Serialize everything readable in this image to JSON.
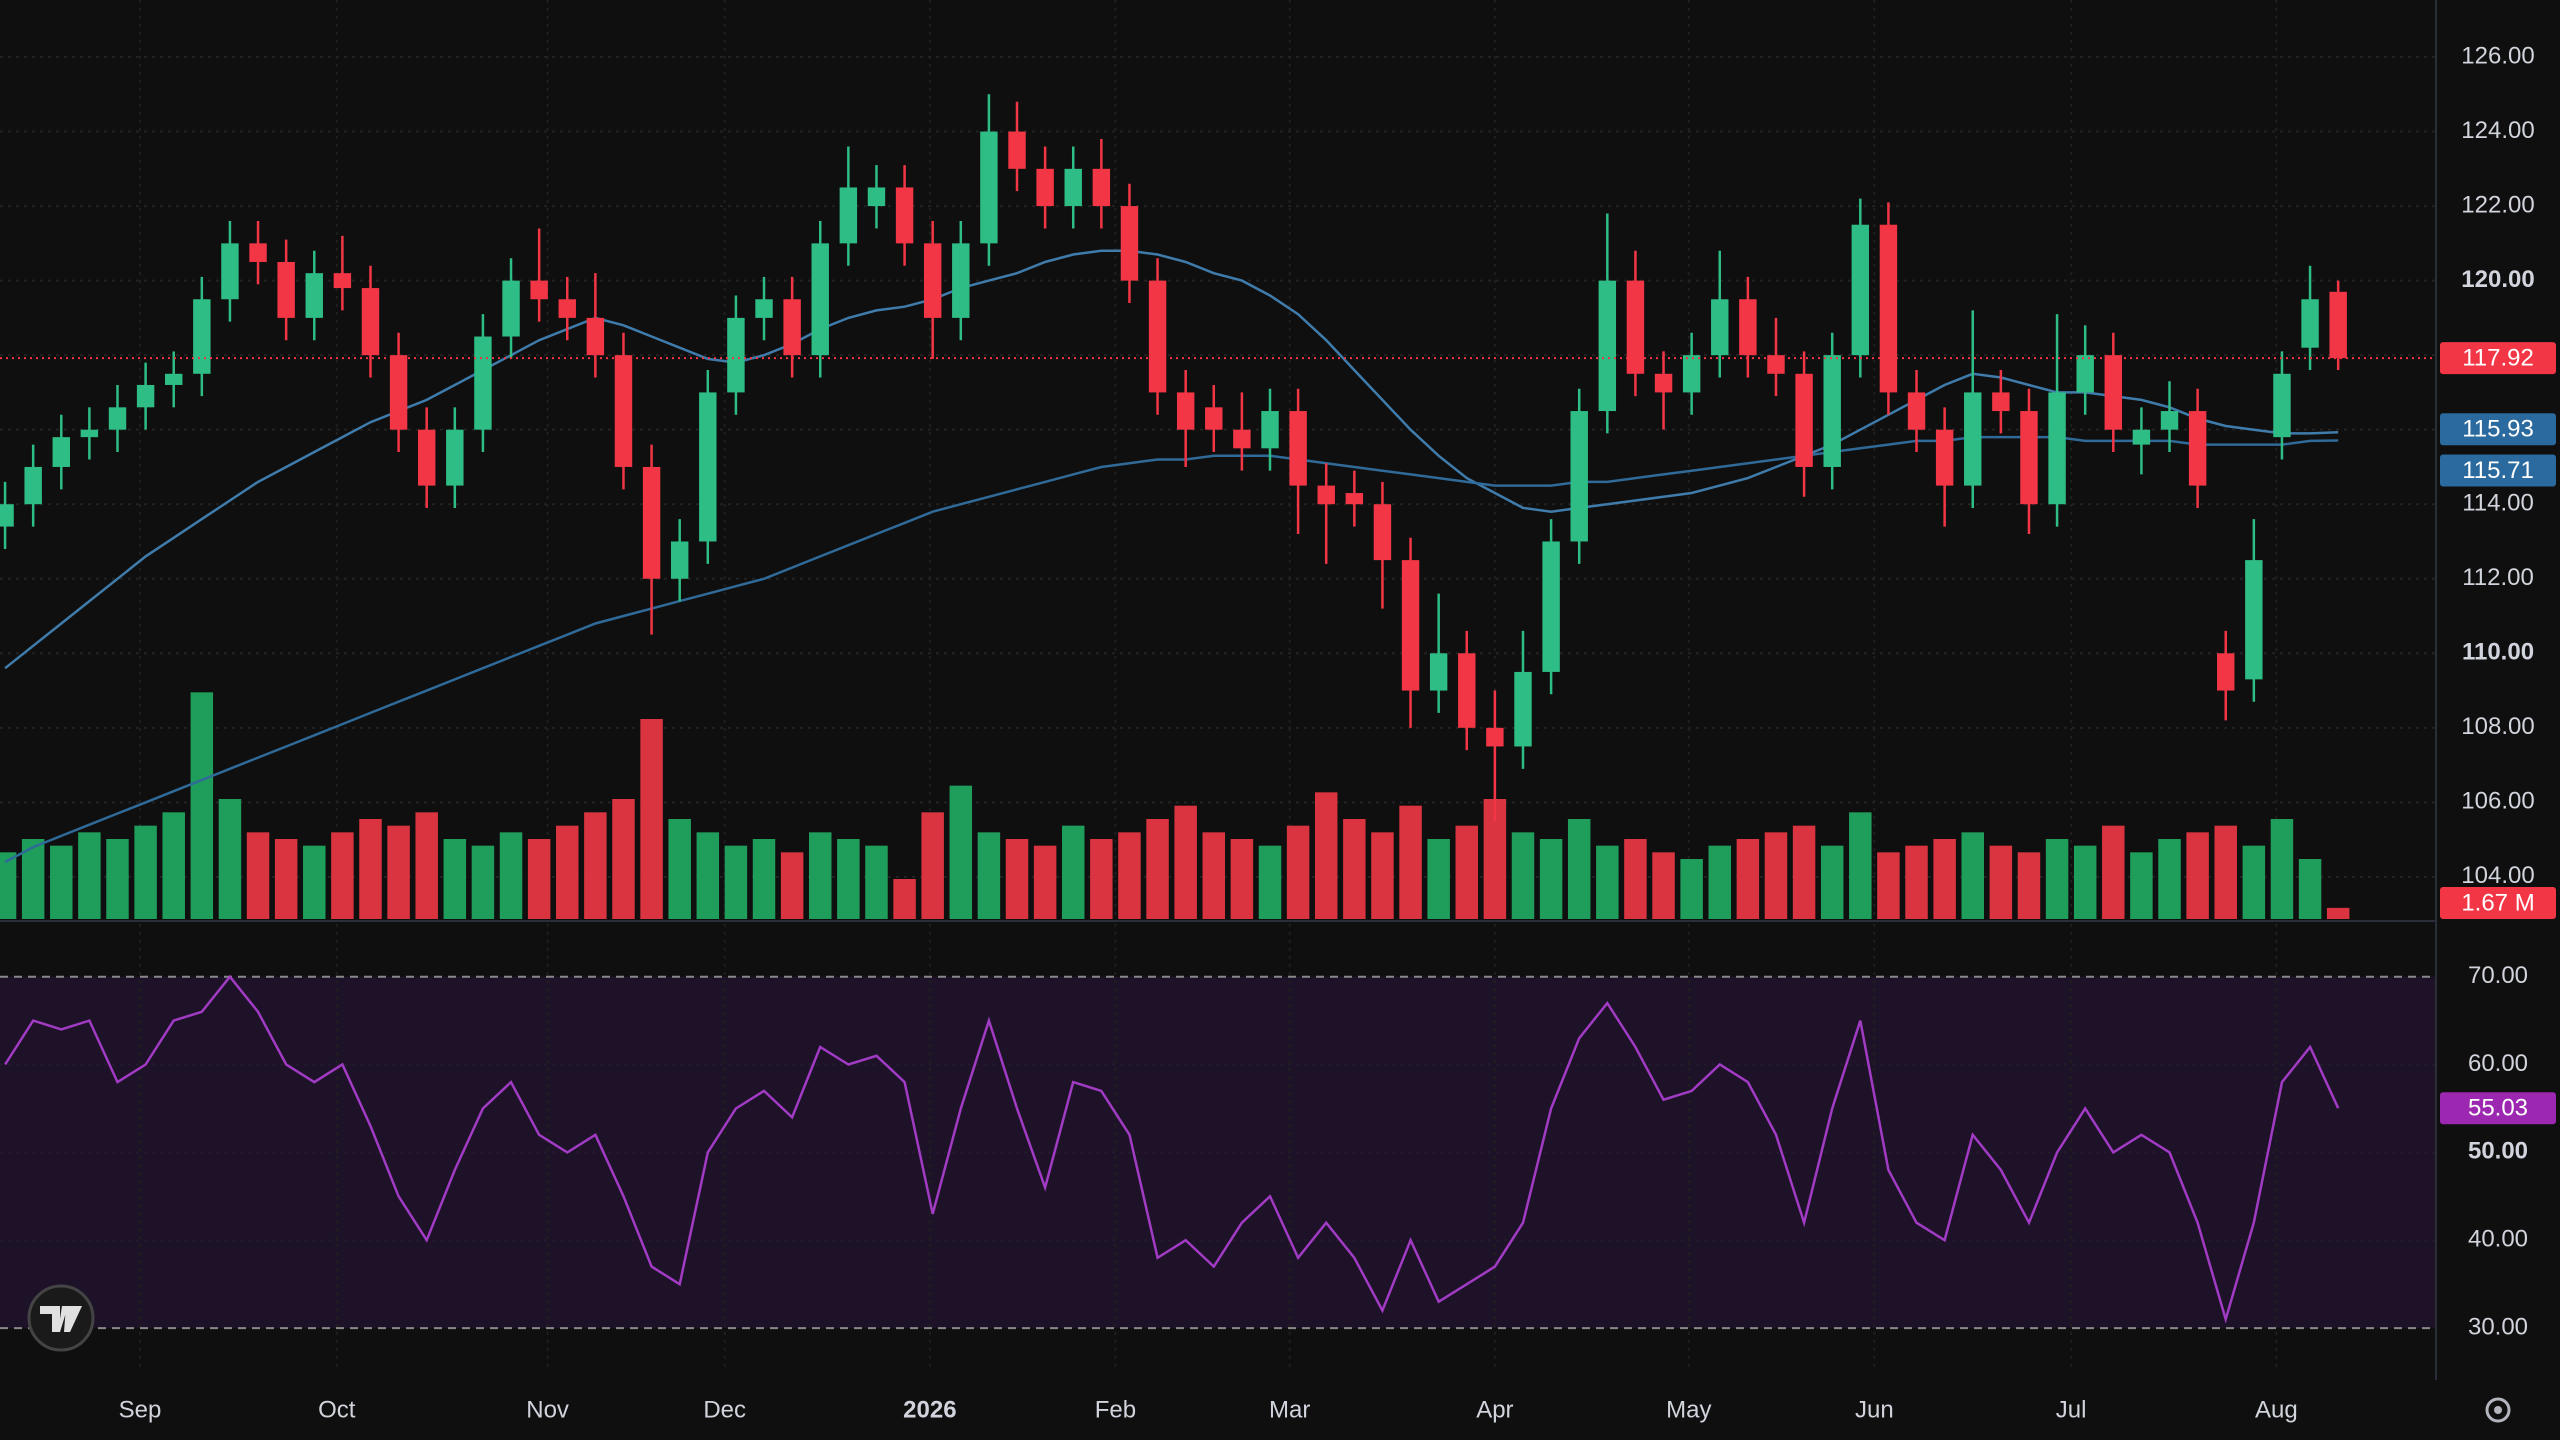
{
  "chart_data": {
    "type": "candlestick",
    "background": "#0f0f0f",
    "up_color": "#2ebd85",
    "down_color": "#f23645",
    "volume_up_color": "#1f9d5b",
    "volume_down_color": "#d9343f",
    "grid": true,
    "xlim": [
      -0.18,
      86.48
    ],
    "xticks": [
      {
        "value": 4.8,
        "label": "Sep"
      },
      {
        "value": 11.8,
        "label": "Oct"
      },
      {
        "value": 19.3,
        "label": "Nov"
      },
      {
        "value": 25.6,
        "label": "Dec"
      },
      {
        "value": 32.9,
        "label": "2026"
      },
      {
        "value": 39.5,
        "label": "Feb"
      },
      {
        "value": 45.7,
        "label": "Mar"
      },
      {
        "value": 53.0,
        "label": "Apr"
      },
      {
        "value": 59.9,
        "label": "May"
      },
      {
        "value": 66.5,
        "label": "Jun"
      },
      {
        "value": 73.5,
        "label": "Jul"
      },
      {
        "value": 80.8,
        "label": "Aug"
      }
    ],
    "ylim": [
      102.87,
      127.53
    ],
    "yticks": [
      {
        "value": 104,
        "label": "104.00"
      },
      {
        "value": 106,
        "label": "106.00"
      },
      {
        "value": 108,
        "label": "108.00"
      },
      {
        "value": 110,
        "label": "110.00"
      },
      {
        "value": 112,
        "label": "112.00"
      },
      {
        "value": 114,
        "label": "114.00"
      },
      {
        "value": 116,
        "label": "116.00"
      },
      {
        "value": 118,
        "label": "118.00"
      },
      {
        "value": 120,
        "label": "120.00"
      },
      {
        "value": 122,
        "label": "122.00"
      },
      {
        "value": 124,
        "label": "124.00"
      },
      {
        "value": 126,
        "label": "126.00"
      }
    ],
    "open": [
      113.4,
      114.0,
      115.0,
      115.8,
      116.0,
      116.6,
      117.2,
      117.5,
      119.5,
      121.0,
      120.5,
      119.0,
      120.2,
      119.8,
      118.0,
      116.0,
      114.5,
      116.0,
      118.5,
      120.0,
      119.5,
      119.0,
      118.0,
      115.0,
      112.0,
      113.0,
      117.0,
      119.0,
      119.5,
      118.0,
      121.0,
      122.0,
      122.5,
      121.0,
      119.0,
      121.0,
      124.0,
      123.0,
      122.0,
      123.0,
      122.0,
      120.0,
      117.0,
      116.6,
      116.0,
      115.5,
      116.5,
      114.5,
      114.3,
      114.0,
      112.5,
      109.0,
      110.0,
      108.0,
      107.5,
      109.5,
      113.0,
      116.5,
      120.0,
      117.5,
      117.0,
      118.0,
      119.5,
      118.0,
      117.5,
      115.0,
      118.0,
      121.5,
      117.0,
      116.0,
      114.5,
      117.0,
      116.5,
      114.0,
      117.0,
      118.0,
      115.6,
      116.0,
      116.5,
      110.0,
      109.3,
      115.8,
      118.2,
      119.7
    ],
    "high": [
      114.6,
      115.6,
      116.4,
      116.6,
      117.2,
      117.8,
      118.1,
      120.1,
      121.6,
      121.6,
      121.1,
      120.8,
      121.2,
      120.4,
      118.6,
      116.6,
      116.6,
      119.1,
      120.6,
      121.4,
      120.1,
      120.2,
      118.6,
      115.6,
      113.6,
      117.6,
      119.6,
      120.1,
      120.1,
      121.6,
      123.6,
      123.1,
      123.1,
      121.6,
      121.6,
      125.0,
      124.8,
      123.6,
      123.6,
      123.8,
      122.6,
      120.6,
      117.6,
      117.2,
      117.0,
      117.1,
      117.1,
      115.1,
      114.9,
      114.6,
      113.1,
      111.6,
      110.6,
      109.0,
      110.6,
      113.6,
      117.1,
      121.8,
      120.8,
      118.1,
      118.6,
      120.8,
      120.1,
      119.0,
      118.1,
      118.6,
      122.2,
      122.1,
      117.6,
      116.6,
      119.2,
      117.6,
      117.1,
      119.1,
      118.8,
      118.6,
      116.6,
      117.3,
      117.1,
      110.6,
      113.6,
      118.1,
      120.4,
      120.0
    ],
    "low": [
      112.8,
      113.4,
      114.4,
      115.2,
      115.4,
      116.0,
      116.6,
      116.9,
      118.9,
      119.9,
      118.4,
      118.4,
      119.2,
      117.4,
      115.4,
      113.9,
      113.9,
      115.4,
      117.9,
      118.9,
      118.4,
      117.4,
      114.4,
      110.5,
      111.4,
      112.4,
      116.4,
      118.4,
      117.4,
      117.4,
      120.4,
      121.4,
      120.4,
      117.9,
      118.4,
      120.4,
      122.4,
      121.4,
      121.4,
      121.4,
      119.4,
      116.4,
      115.0,
      115.4,
      114.9,
      114.9,
      113.2,
      112.4,
      113.4,
      111.2,
      108.0,
      108.4,
      107.4,
      105.5,
      106.9,
      108.9,
      112.4,
      115.9,
      116.9,
      116.0,
      116.4,
      117.4,
      117.4,
      116.9,
      114.2,
      114.4,
      117.4,
      116.4,
      115.4,
      113.4,
      113.9,
      115.9,
      113.2,
      113.4,
      116.4,
      115.4,
      114.8,
      115.4,
      113.9,
      108.2,
      108.7,
      115.2,
      117.6,
      117.6
    ],
    "close": [
      114.0,
      115.0,
      115.8,
      116.0,
      116.6,
      117.2,
      117.5,
      119.5,
      121.0,
      120.5,
      119.0,
      120.2,
      119.8,
      118.0,
      116.0,
      114.5,
      116.0,
      118.5,
      120.0,
      119.5,
      119.0,
      118.0,
      115.0,
      112.0,
      113.0,
      117.0,
      119.0,
      119.5,
      118.0,
      121.0,
      122.5,
      122.5,
      121.0,
      119.0,
      121.0,
      124.0,
      123.0,
      122.0,
      123.0,
      122.0,
      120.0,
      117.0,
      116.0,
      116.0,
      115.5,
      116.5,
      114.5,
      114.0,
      114.0,
      112.5,
      109.0,
      110.0,
      108.0,
      107.5,
      109.5,
      113.0,
      116.5,
      120.0,
      117.5,
      117.0,
      118.0,
      119.5,
      118.0,
      117.5,
      115.0,
      118.0,
      121.5,
      117.0,
      116.0,
      114.5,
      117.0,
      116.5,
      114.0,
      117.0,
      118.0,
      116.0,
      116.0,
      116.5,
      114.5,
      109.0,
      112.5,
      117.5,
      119.5,
      117.92
    ],
    "ma50": {
      "color": "#3f7cab",
      "values": [
        109.6,
        110.2,
        110.8,
        111.4,
        112.0,
        112.6,
        113.1,
        113.6,
        114.1,
        114.6,
        115.0,
        115.4,
        115.8,
        116.2,
        116.5,
        116.8,
        117.2,
        117.6,
        118.0,
        118.4,
        118.7,
        119.0,
        118.8,
        118.5,
        118.2,
        117.9,
        117.8,
        118.0,
        118.3,
        118.7,
        119.0,
        119.2,
        119.3,
        119.5,
        119.8,
        120.0,
        120.2,
        120.5,
        120.7,
        120.8,
        120.8,
        120.7,
        120.5,
        120.2,
        120.0,
        119.6,
        119.1,
        118.4,
        117.6,
        116.8,
        116.0,
        115.3,
        114.7,
        114.3,
        113.9,
        113.8,
        113.9,
        114.0,
        114.1,
        114.2,
        114.3,
        114.5,
        114.7,
        115.0,
        115.3,
        115.6,
        116.0,
        116.4,
        116.8,
        117.2,
        117.5,
        117.4,
        117.2,
        117.0,
        117.0,
        116.9,
        116.8,
        116.6,
        116.3,
        116.1,
        116.0,
        115.9,
        115.9,
        115.93
      ]
    },
    "ma200": {
      "color": "#2f6a99",
      "values": [
        104.4,
        104.8,
        105.1,
        105.4,
        105.7,
        106.0,
        106.3,
        106.6,
        106.9,
        107.2,
        107.5,
        107.8,
        108.1,
        108.4,
        108.7,
        109.0,
        109.3,
        109.6,
        109.9,
        110.2,
        110.5,
        110.8,
        111.0,
        111.2,
        111.4,
        111.6,
        111.8,
        112.0,
        112.3,
        112.6,
        112.9,
        113.2,
        113.5,
        113.8,
        114.0,
        114.2,
        114.4,
        114.6,
        114.8,
        115.0,
        115.1,
        115.2,
        115.2,
        115.3,
        115.3,
        115.3,
        115.2,
        115.1,
        115.0,
        114.9,
        114.8,
        114.7,
        114.6,
        114.5,
        114.5,
        114.5,
        114.6,
        114.6,
        114.7,
        114.8,
        114.9,
        115.0,
        115.1,
        115.2,
        115.3,
        115.4,
        115.5,
        115.6,
        115.7,
        115.7,
        115.8,
        115.8,
        115.8,
        115.8,
        115.7,
        115.7,
        115.7,
        115.7,
        115.6,
        115.6,
        115.6,
        115.6,
        115.7,
        115.71
      ]
    },
    "volume": {
      "vlim": [
        0,
        45
      ],
      "last_label": "1.67 M",
      "values": [
        10,
        12,
        11,
        13,
        12,
        14,
        16,
        34,
        18,
        13,
        12,
        11,
        13,
        15,
        14,
        16,
        12,
        11,
        13,
        12,
        14,
        16,
        18,
        30,
        15,
        13,
        11,
        12,
        10,
        13,
        12,
        11,
        6,
        16,
        20,
        13,
        12,
        11,
        14,
        12,
        13,
        15,
        17,
        13,
        12,
        11,
        14,
        19,
        15,
        13,
        17,
        12,
        14,
        18,
        13,
        12,
        15,
        11,
        12,
        10,
        9,
        11,
        12,
        13,
        14,
        11,
        16,
        10,
        11,
        12,
        13,
        11,
        10,
        12,
        11,
        14,
        10,
        12,
        13,
        14,
        11,
        15,
        9,
        1.67
      ]
    },
    "rsi": {
      "color": "#a13bc4",
      "band_color": "#1d1228",
      "ylim": [
        25,
        76
      ],
      "yticks": [
        {
          "value": 30,
          "label": "30.00"
        },
        {
          "value": 40,
          "label": "40.00"
        },
        {
          "value": 50,
          "label": "50.00"
        },
        {
          "value": 60,
          "label": "60.00"
        },
        {
          "value": 70,
          "label": "70.00"
        }
      ],
      "values": [
        60,
        65,
        64,
        65,
        58,
        60,
        65,
        66,
        70,
        66,
        60,
        58,
        60,
        53,
        45,
        40,
        48,
        55,
        58,
        52,
        50,
        52,
        45,
        37,
        35,
        50,
        55,
        57,
        54,
        62,
        60,
        61,
        58,
        43,
        55,
        65,
        55,
        46,
        58,
        57,
        52,
        38,
        40,
        37,
        42,
        45,
        38,
        42,
        38,
        32,
        40,
        33,
        35,
        37,
        42,
        55,
        63,
        67,
        62,
        56,
        57,
        60,
        58,
        52,
        42,
        55,
        65,
        48,
        42,
        40,
        52,
        48,
        42,
        50,
        55,
        50,
        52,
        50,
        42,
        31,
        42,
        58,
        62,
        55.03
      ]
    }
  }
}
